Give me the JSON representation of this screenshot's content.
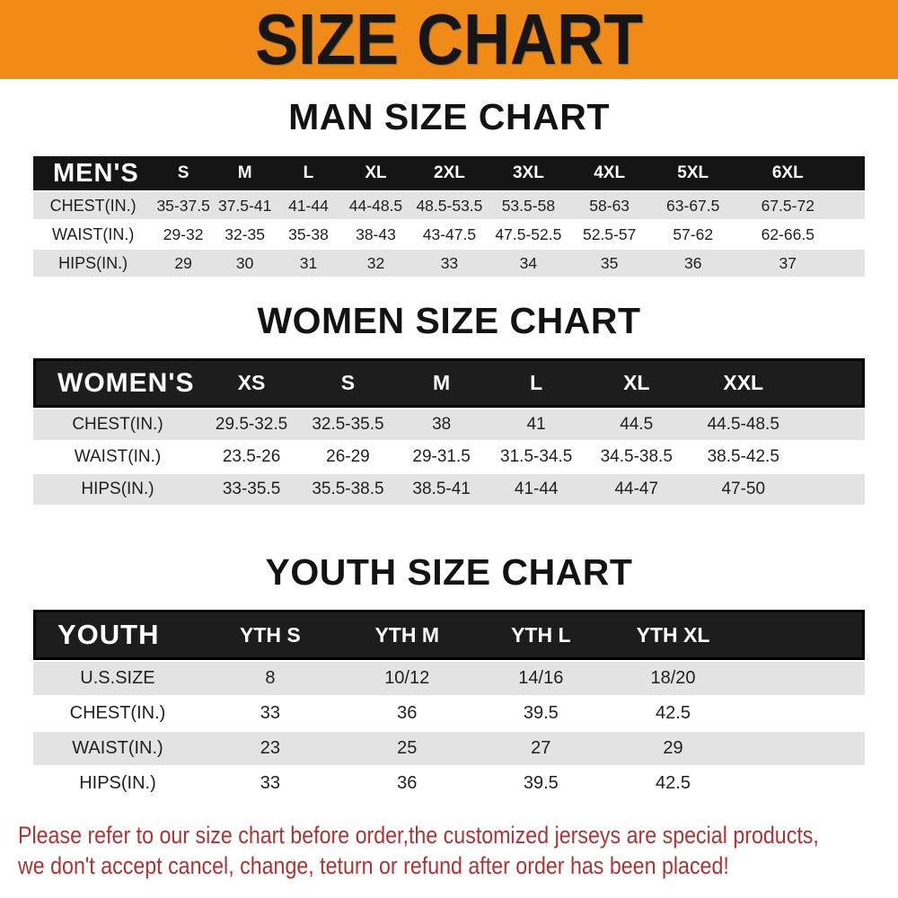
{
  "banner": {
    "title": "SIZE CHART",
    "bg_color": "#EF8B16",
    "text_color": "#161616"
  },
  "sections": [
    {
      "id": "men",
      "title": "MAN SIZE CHART",
      "corner_label": "MEN'S",
      "columns": [
        "S",
        "M",
        "L",
        "XL",
        "2XL",
        "3XL",
        "4XL",
        "5XL",
        "6XL"
      ],
      "rows": [
        {
          "label": "CHEST(IN.)",
          "values": [
            "35-37.5",
            "37.5-41",
            "41-44",
            "44-48.5",
            "48.5-53.5",
            "53.5-58",
            "58-63",
            "63-67.5",
            "67.5-72"
          ]
        },
        {
          "label": "WAIST(IN.)",
          "values": [
            "29-32",
            "32-35",
            "35-38",
            "38-43",
            "43-47.5",
            "47.5-52.5",
            "52.5-57",
            "57-62",
            "62-66.5"
          ]
        },
        {
          "label": "HIPS(IN.)",
          "values": [
            "29",
            "30",
            "31",
            "32",
            "33",
            "34",
            "35",
            "36",
            "37"
          ]
        }
      ]
    },
    {
      "id": "women",
      "title": "WOMEN SIZE CHART",
      "corner_label": "WOMEN'S",
      "columns": [
        "XS",
        "S",
        "M",
        "L",
        "XL",
        "XXL"
      ],
      "rows": [
        {
          "label": "CHEST(IN.)",
          "values": [
            "29.5-32.5",
            "32.5-35.5",
            "38",
            "41",
            "44.5",
            "44.5-48.5"
          ]
        },
        {
          "label": "WAIST(IN.)",
          "values": [
            "23.5-26",
            "26-29",
            "29-31.5",
            "31.5-34.5",
            "34.5-38.5",
            "38.5-42.5"
          ]
        },
        {
          "label": "HIPS(IN.)",
          "values": [
            "33-35.5",
            "35.5-38.5",
            "38.5-41",
            "41-44",
            "44-47",
            "47-50"
          ]
        }
      ]
    },
    {
      "id": "youth",
      "title": "YOUTH SIZE CHART",
      "corner_label": "YOUTH",
      "columns": [
        "YTH S",
        "YTH M",
        "YTH L",
        "YTH XL"
      ],
      "rows": [
        {
          "label": "U.S.SIZE",
          "values": [
            "8",
            "10/12",
            "14/16",
            "18/20"
          ]
        },
        {
          "label": "CHEST(IN.)",
          "values": [
            "33",
            "36",
            "39.5",
            "42.5"
          ]
        },
        {
          "label": "WAIST(IN.)",
          "values": [
            "23",
            "25",
            "27",
            "29"
          ]
        },
        {
          "label": "HIPS(IN.)",
          "values": [
            "33",
            "36",
            "39.5",
            "42.5"
          ]
        }
      ]
    }
  ],
  "footnote": {
    "color": "#B03232",
    "lines": [
      "Please refer to our size chart before order,the customized jerseys are special products,",
      "we don't accept cancel, change, teturn or refund after order has been placed!"
    ]
  }
}
